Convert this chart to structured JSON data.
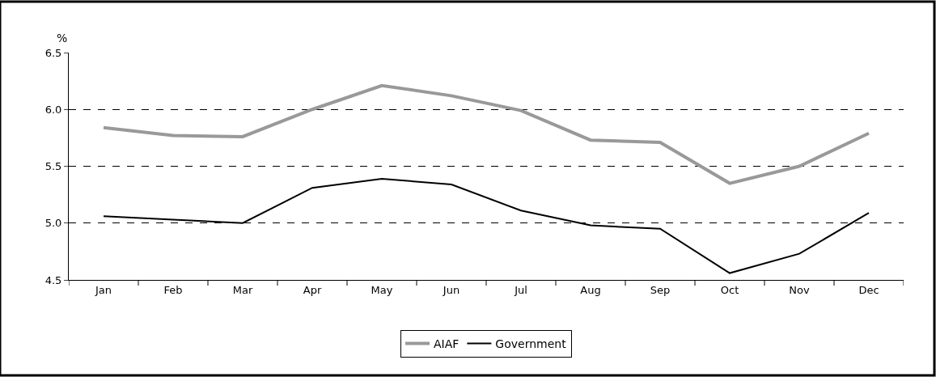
{
  "chart_data": {
    "type": "line",
    "ylabel": "%",
    "categories": [
      "Jan",
      "Feb",
      "Mar",
      "Apr",
      "May",
      "Jun",
      "Jul",
      "Aug",
      "Sep",
      "Oct",
      "Nov",
      "Dec"
    ],
    "series": [
      {
        "name": "AIAF",
        "color": "#999999",
        "values": [
          5.84,
          5.77,
          5.76,
          6.0,
          6.21,
          6.12,
          5.99,
          5.73,
          5.71,
          5.35,
          5.5,
          5.79
        ]
      },
      {
        "name": "Government",
        "color": "#000000",
        "values": [
          5.06,
          5.03,
          5.0,
          5.31,
          5.39,
          5.34,
          5.11,
          4.98,
          4.95,
          4.56,
          4.73,
          5.09
        ]
      }
    ],
    "ylim": [
      4.5,
      6.5
    ],
    "yticks": [
      {
        "value": 4.5,
        "label": "4.5"
      },
      {
        "value": 5.0,
        "label": "5.0"
      },
      {
        "value": 5.5,
        "label": "5.5"
      },
      {
        "value": 6.0,
        "label": "6.0"
      },
      {
        "value": 6.5,
        "label": "6.5"
      }
    ],
    "grid": "y",
    "legend": "bottom",
    "marker": "none",
    "line_style": "solid"
  }
}
